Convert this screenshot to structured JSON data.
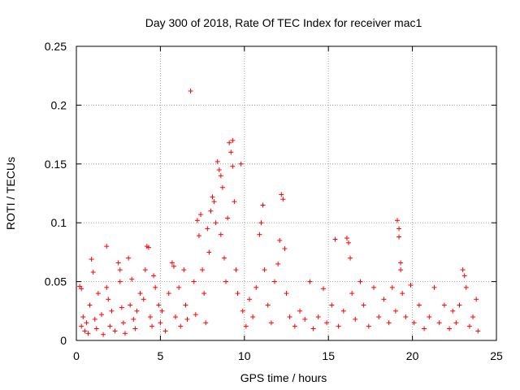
{
  "chart_data": {
    "type": "scatter",
    "title": "Day 300 of 2018, Rate Of TEC Index for receiver mac1",
    "xlabel": "GPS time / hours",
    "ylabel": "ROTI / TECUs",
    "xlim": [
      0,
      25
    ],
    "ylim": [
      0,
      0.25
    ],
    "x_ticks": [
      0,
      5,
      10,
      15,
      20,
      25
    ],
    "y_ticks": [
      0,
      0.05,
      0.1,
      0.15,
      0.2,
      0.25
    ],
    "x_tick_labels": [
      "0",
      "5",
      "10",
      "15",
      "20",
      "25"
    ],
    "y_tick_labels": [
      "0",
      "0.05",
      "0.1",
      "0.15",
      "0.2",
      "0.25"
    ],
    "grid": true,
    "marker": "plus",
    "series_color": "#ff0000",
    "series": [
      {
        "name": "ROTI",
        "points": [
          [
            0.2,
            0.046
          ],
          [
            0.3,
            0.044
          ],
          [
            0.3,
            0.012
          ],
          [
            0.4,
            0.02
          ],
          [
            0.5,
            0.008
          ],
          [
            0.6,
            0.015
          ],
          [
            0.7,
            0.006
          ],
          [
            0.8,
            0.03
          ],
          [
            0.9,
            0.069
          ],
          [
            1.0,
            0.058
          ],
          [
            1.1,
            0.018
          ],
          [
            1.2,
            0.01
          ],
          [
            1.3,
            0.04
          ],
          [
            1.5,
            0.022
          ],
          [
            1.6,
            0.005
          ],
          [
            1.8,
            0.08
          ],
          [
            1.8,
            0.045
          ],
          [
            1.9,
            0.035
          ],
          [
            2.0,
            0.012
          ],
          [
            2.1,
            0.025
          ],
          [
            2.3,
            0.008
          ],
          [
            2.5,
            0.066
          ],
          [
            2.6,
            0.06
          ],
          [
            2.6,
            0.05
          ],
          [
            2.7,
            0.028
          ],
          [
            2.8,
            0.015
          ],
          [
            2.9,
            0.006
          ],
          [
            3.1,
            0.07
          ],
          [
            3.2,
            0.03
          ],
          [
            3.3,
            0.052
          ],
          [
            3.4,
            0.018
          ],
          [
            3.5,
            0.01
          ],
          [
            3.6,
            0.025
          ],
          [
            3.8,
            0.04
          ],
          [
            4.0,
            0.035
          ],
          [
            4.1,
            0.06
          ],
          [
            4.2,
            0.08
          ],
          [
            4.3,
            0.079
          ],
          [
            4.4,
            0.02
          ],
          [
            4.5,
            0.012
          ],
          [
            4.6,
            0.055
          ],
          [
            4.7,
            0.045
          ],
          [
            4.9,
            0.03
          ],
          [
            5.0,
            0.015
          ],
          [
            5.1,
            0.025
          ],
          [
            5.3,
            0.008
          ],
          [
            5.5,
            0.04
          ],
          [
            5.7,
            0.066
          ],
          [
            5.8,
            0.063
          ],
          [
            5.9,
            0.02
          ],
          [
            6.1,
            0.045
          ],
          [
            6.2,
            0.012
          ],
          [
            6.4,
            0.06
          ],
          [
            6.5,
            0.03
          ],
          [
            6.6,
            0.018
          ],
          [
            6.8,
            0.212
          ],
          [
            7.0,
            0.05
          ],
          [
            7.1,
            0.022
          ],
          [
            7.2,
            0.102
          ],
          [
            7.3,
            0.089
          ],
          [
            7.4,
            0.107
          ],
          [
            7.5,
            0.06
          ],
          [
            7.6,
            0.04
          ],
          [
            7.7,
            0.015
          ],
          [
            7.8,
            0.095
          ],
          [
            7.9,
            0.075
          ],
          [
            8.0,
            0.11
          ],
          [
            8.1,
            0.122
          ],
          [
            8.2,
            0.118
          ],
          [
            8.3,
            0.1
          ],
          [
            8.4,
            0.152
          ],
          [
            8.5,
            0.145
          ],
          [
            8.6,
            0.14
          ],
          [
            8.6,
            0.09
          ],
          [
            8.7,
            0.13
          ],
          [
            8.8,
            0.07
          ],
          [
            8.9,
            0.05
          ],
          [
            9.0,
            0.104
          ],
          [
            9.1,
            0.168
          ],
          [
            9.2,
            0.16
          ],
          [
            9.3,
            0.17
          ],
          [
            9.3,
            0.148
          ],
          [
            9.4,
            0.118
          ],
          [
            9.5,
            0.06
          ],
          [
            9.6,
            0.04
          ],
          [
            9.8,
            0.15
          ],
          [
            9.9,
            0.025
          ],
          [
            10.1,
            0.012
          ],
          [
            10.3,
            0.035
          ],
          [
            10.5,
            0.02
          ],
          [
            10.7,
            0.045
          ],
          [
            10.9,
            0.09
          ],
          [
            11.0,
            0.1
          ],
          [
            11.1,
            0.115
          ],
          [
            11.2,
            0.06
          ],
          [
            11.4,
            0.03
          ],
          [
            11.6,
            0.015
          ],
          [
            11.8,
            0.05
          ],
          [
            12.0,
            0.065
          ],
          [
            12.1,
            0.085
          ],
          [
            12.2,
            0.124
          ],
          [
            12.3,
            0.12
          ],
          [
            12.4,
            0.078
          ],
          [
            12.5,
            0.04
          ],
          [
            12.7,
            0.02
          ],
          [
            13.0,
            0.012
          ],
          [
            13.3,
            0.025
          ],
          [
            13.6,
            0.018
          ],
          [
            13.9,
            0.05
          ],
          [
            14.1,
            0.01
          ],
          [
            14.4,
            0.02
          ],
          [
            14.7,
            0.044
          ],
          [
            14.9,
            0.015
          ],
          [
            15.2,
            0.03
          ],
          [
            15.4,
            0.086
          ],
          [
            15.6,
            0.012
          ],
          [
            15.9,
            0.025
          ],
          [
            16.1,
            0.087
          ],
          [
            16.2,
            0.083
          ],
          [
            16.3,
            0.07
          ],
          [
            16.4,
            0.04
          ],
          [
            16.6,
            0.018
          ],
          [
            16.9,
            0.05
          ],
          [
            17.1,
            0.03
          ],
          [
            17.4,
            0.012
          ],
          [
            17.7,
            0.045
          ],
          [
            18.0,
            0.02
          ],
          [
            18.3,
            0.035
          ],
          [
            18.6,
            0.015
          ],
          [
            18.8,
            0.045
          ],
          [
            19.0,
            0.025
          ],
          [
            19.1,
            0.102
          ],
          [
            19.2,
            0.095
          ],
          [
            19.2,
            0.088
          ],
          [
            19.3,
            0.066
          ],
          [
            19.3,
            0.06
          ],
          [
            19.4,
            0.04
          ],
          [
            19.6,
            0.02
          ],
          [
            19.9,
            0.047
          ],
          [
            20.1,
            0.015
          ],
          [
            20.4,
            0.03
          ],
          [
            20.7,
            0.01
          ],
          [
            21.0,
            0.02
          ],
          [
            21.3,
            0.045
          ],
          [
            21.6,
            0.015
          ],
          [
            21.9,
            0.03
          ],
          [
            22.2,
            0.01
          ],
          [
            22.4,
            0.025
          ],
          [
            22.6,
            0.015
          ],
          [
            22.8,
            0.03
          ],
          [
            23.0,
            0.06
          ],
          [
            23.1,
            0.055
          ],
          [
            23.2,
            0.045
          ],
          [
            23.4,
            0.012
          ],
          [
            23.6,
            0.02
          ],
          [
            23.8,
            0.035
          ],
          [
            23.9,
            0.008
          ]
        ]
      }
    ]
  }
}
